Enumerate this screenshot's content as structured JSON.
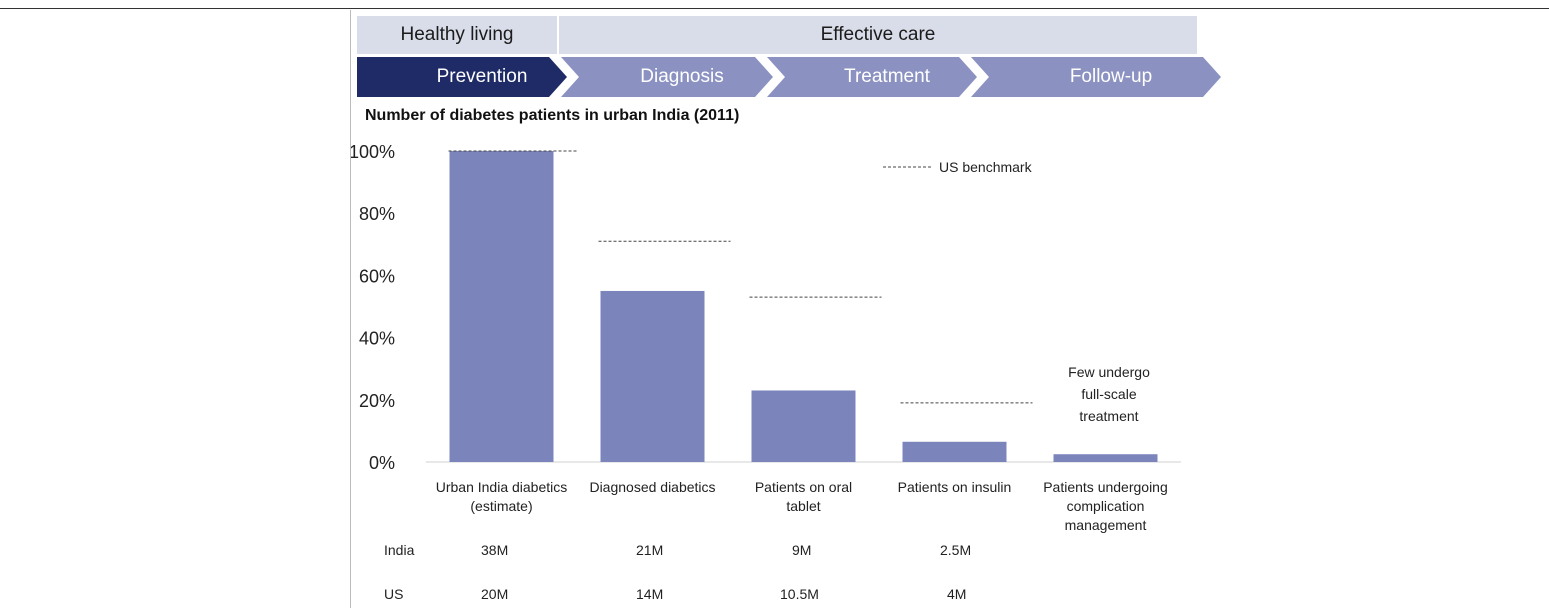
{
  "header": {
    "healthy_living": "Healthy living",
    "effective_care": "Effective care",
    "steps": [
      "Prevention",
      "Diagnosis",
      "Treatment",
      "Follow-up"
    ],
    "colors": {
      "band": "#d9dce9",
      "active_step": "#1f2b66",
      "step": "#8b92c2"
    }
  },
  "chart_data": {
    "type": "bar",
    "title": "Number of diabetes patients in urban India (2011)",
    "categories": [
      [
        "Urban India diabetics",
        "(estimate)"
      ],
      [
        "Diagnosed diabetics"
      ],
      [
        "Patients on oral",
        "tablet"
      ],
      [
        "Patients on insulin"
      ],
      [
        "Patients undergoing",
        "complication",
        "management"
      ]
    ],
    "values": [
      100,
      55,
      23,
      6.5,
      2.5
    ],
    "benchmark": {
      "label": "US benchmark",
      "values": [
        100,
        71,
        53,
        19,
        null
      ]
    },
    "ylim": [
      0,
      100
    ],
    "yticks": [
      "0%",
      "20%",
      "40%",
      "60%",
      "80%",
      "100%"
    ],
    "ytick_values": [
      0,
      20,
      40,
      60,
      80,
      100
    ],
    "annotation": [
      "Few undergo",
      "full-scale",
      "treatment"
    ],
    "bar_color": "#7b85bc"
  },
  "table": {
    "rows": [
      {
        "label": "India",
        "values": [
          "38M",
          "21M",
          "9M",
          "2.5M"
        ]
      },
      {
        "label": "US",
        "values": [
          "20M",
          "14M",
          "10.5M",
          "4M"
        ]
      }
    ]
  }
}
